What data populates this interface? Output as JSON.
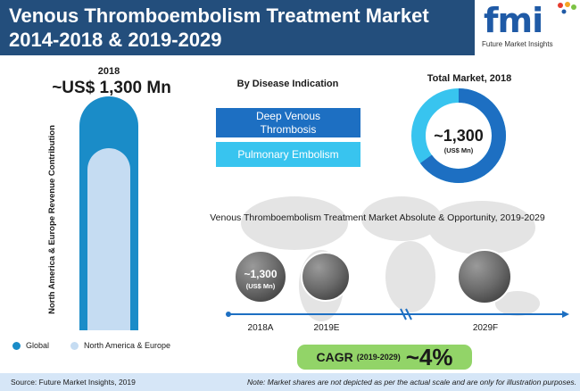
{
  "header": {
    "title_line1": "Venous Thromboembolism Treatment Market",
    "title_line2": "2014-2018 & 2019-2029",
    "logo_text": "fmi",
    "logo_subtext": "Future Market Insights"
  },
  "colors": {
    "header_bg": "#234e7c",
    "global": "#1a8cc8",
    "north_america_europe": "#c5dcf2",
    "dvt": "#1d6fc2",
    "pe": "#38c4ef",
    "cagr_bg": "#92d468",
    "footer_bg": "#d6e6f7"
  },
  "revenue_bar": {
    "year": "2018",
    "value_label": "~US$ 1,300 Mn",
    "axis_label": "North America & Europe Revenue Contribution",
    "legend": [
      "Global",
      "North America & Europe"
    ]
  },
  "disease_indication": {
    "title": "By Disease Indication",
    "items": [
      "Deep Venous Thrombosis",
      "Pulmonary Embolism"
    ]
  },
  "total_market": {
    "title": "Total Market, 2018",
    "value": "~1,300",
    "unit": "(US$ Mn)"
  },
  "opportunity": {
    "title": "Venous Thromboembolism Treatment Market Absolute & Opportunity, 2019-2029",
    "bubble_value": "~1,300",
    "bubble_unit": "(US$ Mn)",
    "years": [
      "2018A",
      "2019E",
      "2029F"
    ]
  },
  "cagr": {
    "label": "CAGR",
    "period": "(2019-2029)",
    "value": "~4%"
  },
  "footer": {
    "source": "Source: Future Market Insights, 2019",
    "note": "Note: Market shares are not depicted as per the actual scale and are only for illustration purposes."
  },
  "chart_data": [
    {
      "type": "bar",
      "categories": [
        "2018"
      ],
      "series": [
        {
          "name": "Global",
          "values": [
            1300
          ]
        },
        {
          "name": "North America & Europe",
          "values": [
            1030
          ]
        }
      ],
      "title": "",
      "ylabel": "North America & Europe Revenue Contribution"
    },
    {
      "type": "pie",
      "title": "Total Market, 2018",
      "categories": [
        "Deep Venous Thrombosis",
        "Pulmonary Embolism"
      ],
      "values": [
        65,
        35
      ]
    }
  ]
}
